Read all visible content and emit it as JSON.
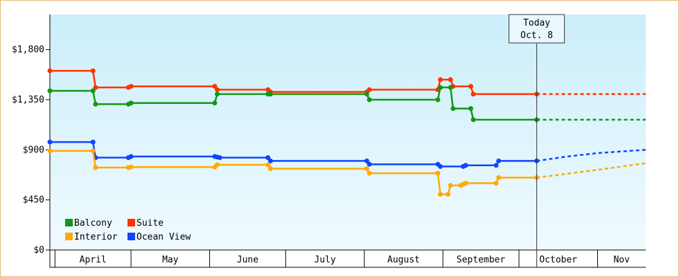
{
  "chart_data": {
    "type": "line",
    "title": "",
    "xlabel": "",
    "ylabel": "",
    "ylim": [
      0,
      2115
    ],
    "y_ticks": [
      "$0",
      "$450",
      "$900",
      "$1,350",
      "$1,800"
    ],
    "y_tick_values": [
      0,
      450,
      900,
      1350,
      1800
    ],
    "x_range": [
      "2024-03-30",
      "2024-11-20"
    ],
    "months": [
      {
        "label": "April",
        "start": "2024-04-01",
        "end": "2024-05-01"
      },
      {
        "label": "May",
        "start": "2024-05-01",
        "end": "2024-06-01"
      },
      {
        "label": "June",
        "start": "2024-06-01",
        "end": "2024-07-01"
      },
      {
        "label": "July",
        "start": "2024-07-01",
        "end": "2024-08-01"
      },
      {
        "label": "August",
        "start": "2024-08-01",
        "end": "2024-09-01"
      },
      {
        "label": "September",
        "start": "2024-09-01",
        "end": "2024-10-01"
      },
      {
        "label": "October",
        "start": "2024-10-01",
        "end": "2024-11-01"
      },
      {
        "label": "Nov",
        "start": "2024-11-01",
        "end": "2024-11-20"
      }
    ],
    "today": {
      "line1": "Today",
      "line2": "Oct. 8",
      "date": "2024-10-08"
    },
    "legend_placement": "bottom-left",
    "background_gradient": [
      "#cbeefa",
      "#f0fafe"
    ],
    "series": [
      {
        "name": "Suite",
        "color": "#ff3300",
        "points": [
          [
            "2024-03-30",
            1610
          ],
          [
            "2024-04-16",
            1610
          ],
          [
            "2024-04-17",
            1460
          ],
          [
            "2024-04-30",
            1460
          ],
          [
            "2024-05-01",
            1470
          ],
          [
            "2024-06-03",
            1470
          ],
          [
            "2024-06-04",
            1440
          ],
          [
            "2024-06-24",
            1440
          ],
          [
            "2024-06-25",
            1420
          ],
          [
            "2024-08-02",
            1420
          ],
          [
            "2024-08-03",
            1440
          ],
          [
            "2024-08-30",
            1440
          ],
          [
            "2024-08-31",
            1530
          ],
          [
            "2024-09-04",
            1530
          ],
          [
            "2024-09-05",
            1470
          ],
          [
            "2024-09-12",
            1470
          ],
          [
            "2024-09-13",
            1400
          ],
          [
            "2024-10-08",
            1400
          ]
        ],
        "forecast": [
          [
            "2024-10-08",
            1400
          ],
          [
            "2024-11-20",
            1400
          ]
        ]
      },
      {
        "name": "Balcony",
        "color": "#119911",
        "points": [
          [
            "2024-03-30",
            1430
          ],
          [
            "2024-04-16",
            1430
          ],
          [
            "2024-04-17",
            1310
          ],
          [
            "2024-04-30",
            1310
          ],
          [
            "2024-05-01",
            1320
          ],
          [
            "2024-06-03",
            1320
          ],
          [
            "2024-06-04",
            1400
          ],
          [
            "2024-06-24",
            1400
          ],
          [
            "2024-06-25",
            1400
          ],
          [
            "2024-08-02",
            1400
          ],
          [
            "2024-08-03",
            1350
          ],
          [
            "2024-08-30",
            1350
          ],
          [
            "2024-08-31",
            1460
          ],
          [
            "2024-09-04",
            1460
          ],
          [
            "2024-09-05",
            1270
          ],
          [
            "2024-09-12",
            1270
          ],
          [
            "2024-09-13",
            1170
          ],
          [
            "2024-10-08",
            1170
          ]
        ],
        "forecast": [
          [
            "2024-10-08",
            1170
          ],
          [
            "2024-11-20",
            1170
          ]
        ]
      },
      {
        "name": "Ocean View",
        "color": "#1144ff",
        "points": [
          [
            "2024-03-30",
            970
          ],
          [
            "2024-04-16",
            970
          ],
          [
            "2024-04-17",
            830
          ],
          [
            "2024-04-30",
            830
          ],
          [
            "2024-05-01",
            840
          ],
          [
            "2024-06-03",
            840
          ],
          [
            "2024-06-04",
            835
          ],
          [
            "2024-06-05",
            830
          ],
          [
            "2024-06-24",
            830
          ],
          [
            "2024-06-25",
            800
          ],
          [
            "2024-08-02",
            800
          ],
          [
            "2024-08-03",
            770
          ],
          [
            "2024-08-30",
            770
          ],
          [
            "2024-08-31",
            750
          ],
          [
            "2024-09-09",
            750
          ],
          [
            "2024-09-10",
            760
          ],
          [
            "2024-09-22",
            760
          ],
          [
            "2024-09-23",
            800
          ],
          [
            "2024-10-08",
            800
          ]
        ],
        "forecast": [
          [
            "2024-10-08",
            800
          ],
          [
            "2024-10-20",
            840
          ],
          [
            "2024-11-01",
            870
          ],
          [
            "2024-11-20",
            900
          ]
        ]
      },
      {
        "name": "Interior",
        "color": "#ffaa00",
        "points": [
          [
            "2024-03-30",
            890
          ],
          [
            "2024-04-16",
            890
          ],
          [
            "2024-04-17",
            740
          ],
          [
            "2024-04-30",
            740
          ],
          [
            "2024-05-01",
            745
          ],
          [
            "2024-06-03",
            745
          ],
          [
            "2024-06-04",
            765
          ],
          [
            "2024-06-24",
            765
          ],
          [
            "2024-06-25",
            730
          ],
          [
            "2024-08-02",
            730
          ],
          [
            "2024-08-03",
            690
          ],
          [
            "2024-08-30",
            690
          ],
          [
            "2024-08-31",
            500
          ],
          [
            "2024-09-03",
            500
          ],
          [
            "2024-09-04",
            580
          ],
          [
            "2024-09-08",
            580
          ],
          [
            "2024-09-09",
            590
          ],
          [
            "2024-09-10",
            600
          ],
          [
            "2024-09-22",
            600
          ],
          [
            "2024-09-23",
            650
          ],
          [
            "2024-10-08",
            650
          ]
        ],
        "forecast": [
          [
            "2024-10-08",
            650
          ],
          [
            "2024-11-01",
            720
          ],
          [
            "2024-11-20",
            780
          ]
        ]
      }
    ],
    "legend": [
      {
        "name": "Balcony",
        "color": "#119911"
      },
      {
        "name": "Suite",
        "color": "#ff3300"
      },
      {
        "name": "Interior",
        "color": "#ffaa00"
      },
      {
        "name": "Ocean View",
        "color": "#1144ff"
      }
    ]
  }
}
